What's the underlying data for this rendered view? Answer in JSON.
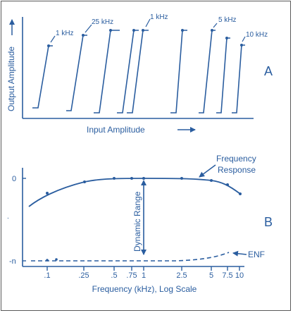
{
  "colors": {
    "ink": "#2a5d9f",
    "frame": "#5a5a5a"
  },
  "panel_a": {
    "letter": "A",
    "y_axis_label": "Output Amplitude",
    "x_axis_label": "Input Amplitude",
    "curve_labels": [
      "1 kHz",
      "25 kHz",
      "1 kHz",
      "5 kHz",
      "10 kHz"
    ]
  },
  "panel_b": {
    "letter": "B",
    "y_tick_top": "0",
    "y_tick_bottom": "-n",
    "frequency_response_label_line1": "Frequency",
    "frequency_response_label_line2": "Response",
    "dynamic_range_label": "Dynamic Range",
    "enf_label": "ENF",
    "x_axis_label": "Frequency (kHz), Log Scale",
    "x_ticks": [
      ".1",
      ".25",
      ".5",
      ".75",
      "1",
      "2.5",
      "5",
      "7.5",
      "10"
    ],
    "small_mark": "."
  },
  "chart_data": {
    "type": "line",
    "xlabel": "Frequency (kHz), Log Scale",
    "x_scale": "log",
    "x": [
      0.1,
      0.25,
      0.5,
      0.75,
      1,
      2.5,
      5,
      7.5,
      10
    ],
    "series": [
      {
        "name": "Frequency Response"
      },
      {
        "name": "ENF"
      }
    ]
  }
}
